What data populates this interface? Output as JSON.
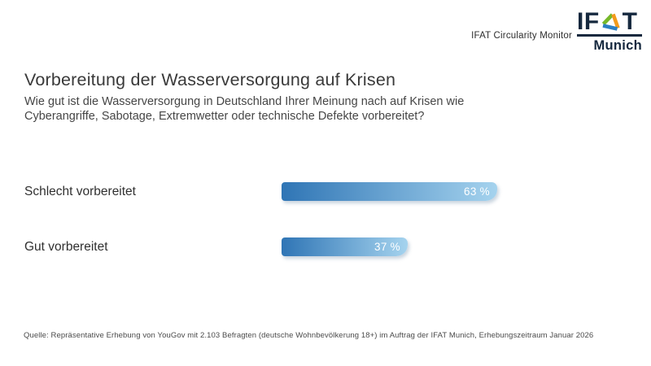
{
  "header": {
    "brand_text": "IFAT Circularity Monitor",
    "logo": {
      "word_start": "IF",
      "word_end": "T",
      "city": "Munich",
      "navy_color": "#15283e",
      "triangle_colors": {
        "green": "#76b82a",
        "blue": "#2c7fc3",
        "orange": "#f29a1c"
      }
    }
  },
  "title": "Vorbereitung der Wasserversorgung auf Krisen",
  "subtitle": "Wie gut ist die Wasserversorgung in Deutschland Ihrer Meinung nach auf Krisen wie Cyberangriffe, Sabotage, Extremwetter oder technische Defekte vorbereitet?",
  "chart_data": {
    "type": "bar",
    "orientation": "horizontal",
    "categories": [
      "Schlecht vorbereitet",
      "Gut vorbereitet"
    ],
    "values": [
      63,
      37
    ],
    "value_labels": [
      "63 %",
      "37 %"
    ],
    "unit": "%",
    "xlim": [
      0,
      100
    ],
    "grid": false,
    "legend": false,
    "axis_labels_visible": false,
    "bar_color_start": "#2f75b5",
    "bar_color_end": "#a5d3ee",
    "value_label_color": "#ffffff"
  },
  "footer": {
    "source": "Quelle: Repräsentative Erhebung von YouGov mit 2.103 Befragten (deutsche Wohnbevölkerung 18+) im Auftrag der IFAT Munich, Erhebungszeitraum Januar 2026"
  }
}
